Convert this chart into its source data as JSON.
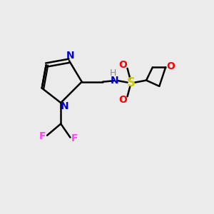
{
  "background_color": "#ebebeb",
  "bond_color": "#000000",
  "N_color": "#0000cc",
  "S_color": "#cccc00",
  "O_color": "#ff0000",
  "F_color": "#ff44ff",
  "H_color": "#888888",
  "figsize": [
    3.0,
    3.0
  ],
  "dpi": 100,
  "xlim": [
    0,
    10
  ],
  "ylim": [
    0,
    10
  ]
}
